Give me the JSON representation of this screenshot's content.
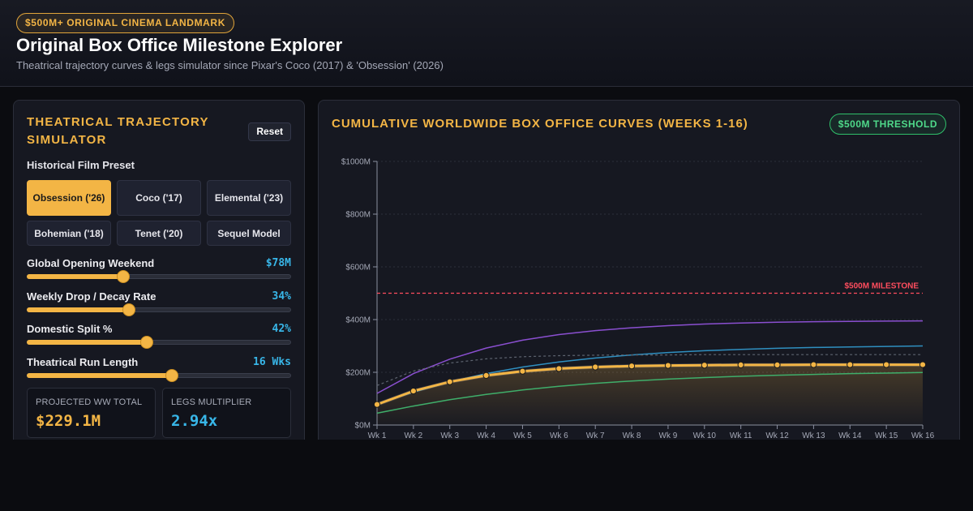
{
  "header": {
    "badge": "$500M+ ORIGINAL CINEMA LANDMARK",
    "title": "Original Box Office Milestone Explorer",
    "subtitle": "Theatrical trajectory curves & legs simulator since Pixar's Coco (2017) & 'Obsession' (2026)"
  },
  "simulator": {
    "title": "THEATRICAL TRAJECTORY SIMULATOR",
    "reset_label": "Reset",
    "preset_label": "Historical Film Preset",
    "presets": [
      {
        "label": "Obsession ('26)",
        "active": true
      },
      {
        "label": "Coco ('17)",
        "active": false
      },
      {
        "label": "Elemental ('23)",
        "active": false
      },
      {
        "label": "Bohemian ('18)",
        "active": false
      },
      {
        "label": "Tenet ('20)",
        "active": false
      },
      {
        "label": "Sequel Model",
        "active": false
      }
    ],
    "sliders": [
      {
        "label": "Global Opening Weekend",
        "value": "$78M",
        "level": 0.365
      },
      {
        "label": "Weekly Drop / Decay Rate",
        "value": "34%",
        "level": 0.385
      },
      {
        "label": "Domestic Split %",
        "value": "42%",
        "level": 0.455
      },
      {
        "label": "Theatrical Run Length",
        "value": "16 Wks",
        "level": 0.55
      }
    ],
    "stats": [
      {
        "label": "PROJECTED WW TOTAL",
        "value": "$229.1M",
        "color": "#f3b545"
      },
      {
        "label": "LEGS MULTIPLIER",
        "value": "2.94x",
        "color": "#38b6e8"
      }
    ]
  },
  "chart_panel": {
    "title": "CUMULATIVE WORLDWIDE BOX OFFICE CURVES (WEEKS 1-16)",
    "threshold_badge": "$500M THRESHOLD"
  },
  "chart_data": {
    "type": "line",
    "x": [
      "Wk 1",
      "Wk 2",
      "Wk 3",
      "Wk 4",
      "Wk 5",
      "Wk 6",
      "Wk 7",
      "Wk 8",
      "Wk 9",
      "Wk 10",
      "Wk 11",
      "Wk 12",
      "Wk 13",
      "Wk 14",
      "Wk 15",
      "Wk 16"
    ],
    "yticks": [
      "$0M",
      "$200M",
      "$400M",
      "$600M",
      "$800M",
      "$1000M"
    ],
    "ylim": [
      0,
      1000
    ],
    "grid": true,
    "milestone": {
      "value": 500,
      "label": "$500M MILESTONE",
      "color": "#ff4d5e"
    },
    "series": [
      {
        "color": "#f3b545",
        "highlight": true,
        "values": [
          78,
          129,
          164,
          188,
          204,
          214,
          220,
          224,
          226,
          227,
          228,
          228,
          229,
          229,
          229,
          229
        ]
      },
      {
        "color": "#8a4fd0",
        "values": [
          120,
          195,
          250,
          292,
          322,
          343,
          358,
          369,
          377,
          383,
          387,
          390,
          392,
          393,
          394,
          395
        ]
      },
      {
        "color": "#2f8fc0",
        "values": [
          80,
          125,
          163,
          195,
          220,
          239,
          254,
          266,
          275,
          282,
          287,
          291,
          294,
          296,
          298,
          300
        ]
      },
      {
        "color": "#5e6470",
        "dashed": true,
        "values": [
          150,
          205,
          235,
          251,
          259,
          263,
          265,
          266,
          266,
          267,
          267,
          267,
          267,
          267,
          267,
          267
        ]
      },
      {
        "color": "#3fae6a",
        "values": [
          45,
          72,
          96,
          116,
          133,
          147,
          158,
          167,
          174,
          180,
          185,
          189,
          192,
          195,
          197,
          199
        ]
      }
    ]
  }
}
